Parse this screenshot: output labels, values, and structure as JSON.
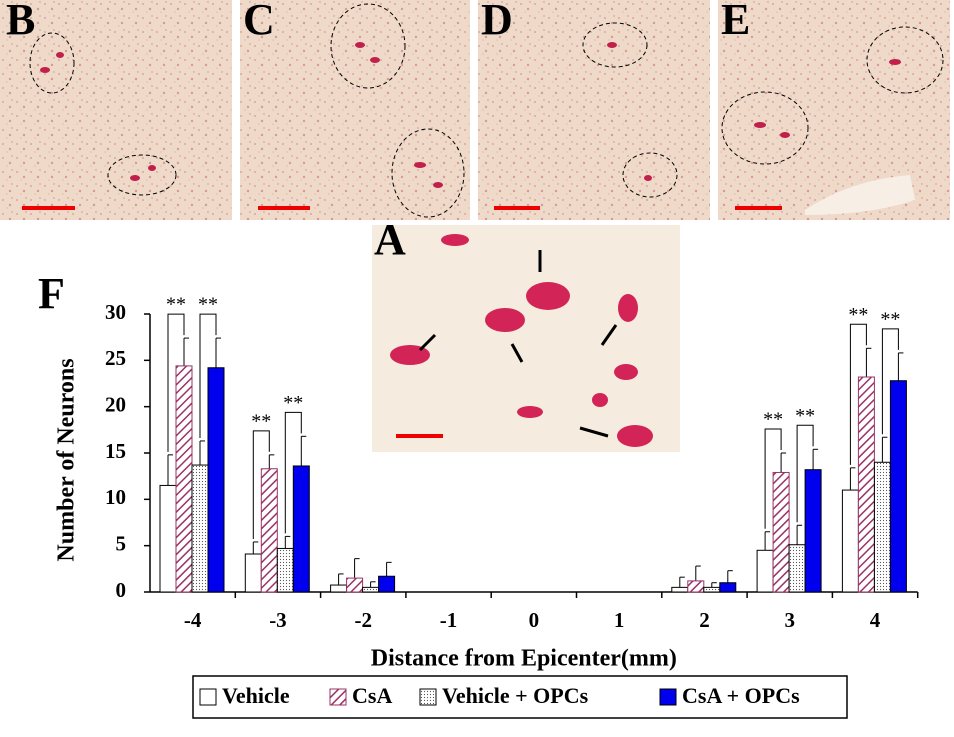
{
  "panels": [
    {
      "label": "B"
    },
    {
      "label": "C"
    },
    {
      "label": "D"
    },
    {
      "label": "E"
    },
    {
      "label": "A"
    }
  ],
  "chart_data": {
    "type": "bar",
    "label": "F",
    "xlabel": "Distance from Epicenter(mm)",
    "ylabel": "Number of Neurons",
    "categories": [
      "-4",
      "-3",
      "-2",
      "-1",
      "0",
      "1",
      "2",
      "3",
      "4"
    ],
    "ylim": [
      0,
      30
    ],
    "yticks": [
      0,
      5,
      10,
      15,
      20,
      25,
      30
    ],
    "series": [
      {
        "name": "Vehicle",
        "color": "#000000",
        "fill": "none",
        "values": [
          11.5,
          4.1,
          0.75,
          0,
          0,
          0,
          0.5,
          4.5,
          11
        ],
        "errors": [
          3.3,
          1.3,
          1.2,
          0,
          0,
          0,
          1.1,
          2,
          2.4
        ]
      },
      {
        "name": "CsA",
        "color": "#993366",
        "fill": "hatch",
        "values": [
          24.4,
          13.3,
          1.5,
          0,
          0,
          0,
          1.2,
          12.9,
          23.2
        ],
        "errors": [
          3,
          1.5,
          2.1,
          0,
          0,
          0,
          1.6,
          2.1,
          3.1
        ]
      },
      {
        "name": "Vehicle + OPCs",
        "color": "#000000",
        "fill": "dots",
        "values": [
          13.7,
          4.7,
          0.5,
          0,
          0,
          0,
          0.5,
          5.1,
          14
        ],
        "errors": [
          2.6,
          1.3,
          0.6,
          0,
          0,
          0,
          0.5,
          2.1,
          2.7
        ]
      },
      {
        "name": "CsA + OPCs",
        "color": "#0000ee",
        "fill": "solid",
        "values": [
          24.2,
          13.6,
          1.7,
          0,
          0,
          0,
          1,
          13.2,
          22.8
        ],
        "errors": [
          3.2,
          3.2,
          1.5,
          0,
          0,
          0,
          1.3,
          2.2,
          3
        ]
      }
    ],
    "significance": [
      {
        "category": 0,
        "pair": [
          0,
          1
        ],
        "label": "**"
      },
      {
        "category": 0,
        "pair": [
          2,
          3
        ],
        "label": "**"
      },
      {
        "category": 1,
        "pair": [
          0,
          1
        ],
        "label": "**"
      },
      {
        "category": 1,
        "pair": [
          2,
          3
        ],
        "label": "**"
      },
      {
        "category": 7,
        "pair": [
          0,
          1
        ],
        "label": "**"
      },
      {
        "category": 7,
        "pair": [
          2,
          3
        ],
        "label": "**"
      },
      {
        "category": 8,
        "pair": [
          0,
          1
        ],
        "label": "**"
      },
      {
        "category": 8,
        "pair": [
          2,
          3
        ],
        "label": "**"
      }
    ]
  }
}
